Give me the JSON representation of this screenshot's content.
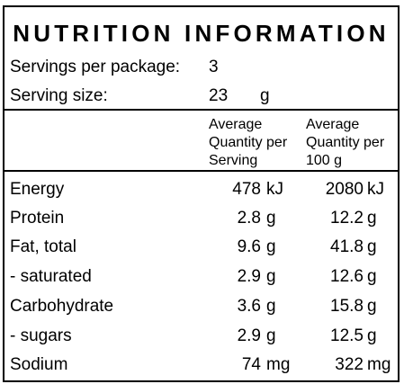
{
  "title": "NUTRITION INFORMATION",
  "servings": {
    "label": "Servings per package:",
    "value": "3"
  },
  "serving_size": {
    "label": "Serving size:",
    "value": "23",
    "unit": "g"
  },
  "columns": {
    "per_serving": [
      "Average",
      "Quantity per",
      "Serving"
    ],
    "per_100g": [
      "Average",
      "Quantity per",
      "100 g"
    ]
  },
  "rows": [
    {
      "label": "Energy",
      "serving_value": "478",
      "serving_unit": "kJ",
      "per100_value": "2080",
      "per100_unit": "kJ"
    },
    {
      "label": "Protein",
      "serving_value": "2.8",
      "serving_unit": "g",
      "per100_value": "12.2",
      "per100_unit": "g"
    },
    {
      "label": "Fat, total",
      "serving_value": "9.6",
      "serving_unit": "g",
      "per100_value": "41.8",
      "per100_unit": "g"
    },
    {
      "label": "- saturated",
      "serving_value": "2.9",
      "serving_unit": "g",
      "per100_value": "12.6",
      "per100_unit": "g"
    },
    {
      "label": "Carbohydrate",
      "serving_value": "3.6",
      "serving_unit": "g",
      "per100_value": "15.8",
      "per100_unit": "g"
    },
    {
      "label": "- sugars",
      "serving_value": "2.9",
      "serving_unit": "g",
      "per100_value": "12.5",
      "per100_unit": "g"
    },
    {
      "label": "Sodium",
      "serving_value": "74",
      "serving_unit": "mg",
      "per100_value": "322",
      "per100_unit": "mg"
    }
  ]
}
